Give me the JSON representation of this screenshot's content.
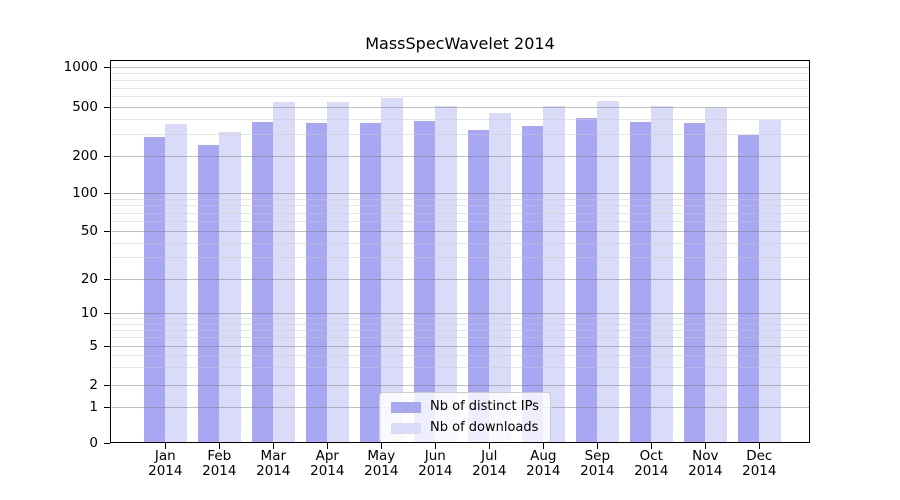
{
  "figure": {
    "background": "#ffffff"
  },
  "chart_data": {
    "type": "bar",
    "title": "MassSpecWavelet 2014",
    "categories": [
      "Jan",
      "Feb",
      "Mar",
      "Apr",
      "May",
      "Jun",
      "Jul",
      "Aug",
      "Sep",
      "Oct",
      "Nov",
      "Dec"
    ],
    "year": "2014",
    "series": [
      {
        "name": "Nb of distinct IPs",
        "color": "#a8a8f2",
        "values": [
          285,
          245,
          380,
          368,
          372,
          385,
          328,
          352,
          405,
          375,
          370,
          295
        ]
      },
      {
        "name": "Nb of downloads",
        "color": "#dadaf9",
        "values": [
          365,
          315,
          545,
          548,
          585,
          510,
          445,
          510,
          555,
          510,
          490,
          395
        ]
      }
    ],
    "yticks": [
      0,
      1,
      2,
      5,
      10,
      20,
      50,
      100,
      200,
      500,
      1000
    ],
    "yaxis_scale": "log-like with 0 baseline",
    "ylim": [
      0,
      1140
    ],
    "grid": "horizontal major and minor gridlines",
    "legend_position": "inside plot, bottom center",
    "colors": {
      "major_grid": "#b9b9b9",
      "minor_grid": "#e7e7e7",
      "spine": "#000000",
      "text": "#000000"
    }
  }
}
